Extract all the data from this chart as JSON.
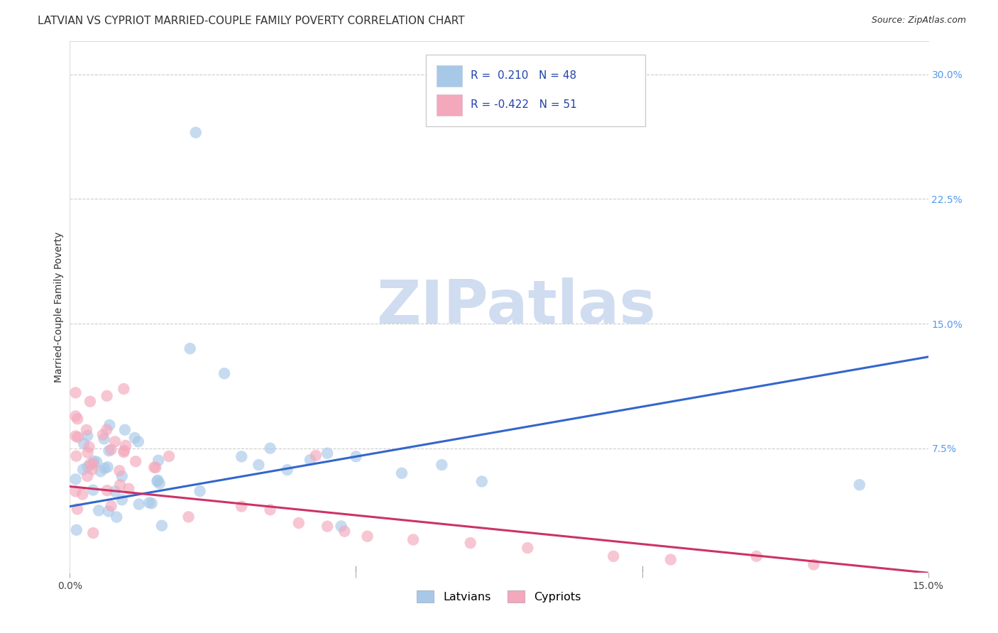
{
  "title": "LATVIAN VS CYPRIOT MARRIED-COUPLE FAMILY POVERTY CORRELATION CHART",
  "source": "Source: ZipAtlas.com",
  "ylabel": "Married-Couple Family Poverty",
  "xlim": [
    0.0,
    0.15
  ],
  "ylim": [
    0.0,
    0.32
  ],
  "ytick_right_vals": [
    0.075,
    0.15,
    0.225,
    0.3
  ],
  "ytick_right_labels": [
    "7.5%",
    "15.0%",
    "22.5%",
    "30.0%"
  ],
  "latvian_R": 0.21,
  "latvian_N": 48,
  "cypriot_R": -0.422,
  "cypriot_N": 51,
  "latvian_color": "#A8C8E8",
  "cypriot_color": "#F4A8BC",
  "latvian_line_color": "#3366CC",
  "cypriot_line_color": "#CC3366",
  "watermark_color": "#D0DCF0",
  "background_color": "#FFFFFF",
  "grid_color": "#CCCCCC",
  "title_fontsize": 11,
  "axis_label_fontsize": 10,
  "tick_fontsize": 10,
  "latvian_line_start_y": 0.04,
  "latvian_line_end_y": 0.13,
  "cypriot_line_start_y": 0.052,
  "cypriot_line_end_y": 0.0
}
